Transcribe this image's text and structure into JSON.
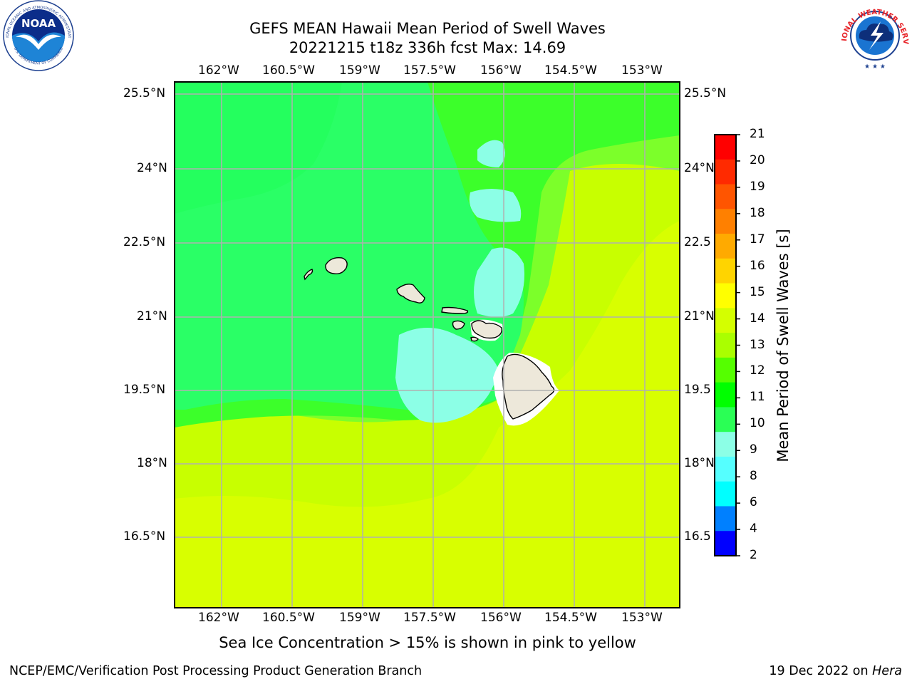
{
  "title": {
    "line1": "GEFS MEAN Hawaii Mean Period of Swell Waves",
    "line2": "20221215 t18z 336h fcst   Max: 14.69"
  },
  "map": {
    "lon_labels": [
      "162°W",
      "160.5°W",
      "159°W",
      "157.5°W",
      "156°W",
      "154.5°W",
      "153°W"
    ],
    "lat_labels_left": [
      "25.5°N",
      "24°N",
      "22.5°N",
      "21°N",
      "19.5°N",
      "18°N",
      "16.5°N"
    ],
    "lat_labels_right": [
      "25.5°N",
      "24°N",
      "22.5",
      "21°N",
      "19.5",
      "18°N",
      "16.5"
    ],
    "ocean_color": "#7cff2a",
    "land_color": "#ede8da"
  },
  "colorbar": {
    "label": "Mean Period of Swell Waves [s]",
    "ticks": [
      "21",
      "20",
      "19",
      "18",
      "17",
      "16",
      "15",
      "14",
      "13",
      "12",
      "11",
      "10",
      "9",
      "8",
      "6",
      "4",
      "2"
    ],
    "colors": [
      "#ff0000",
      "#ff2a00",
      "#ff5500",
      "#ff8000",
      "#ffaa00",
      "#ffd400",
      "#ffff00",
      "#d4ff00",
      "#aaff00",
      "#55ff00",
      "#00ff00",
      "#2aff55",
      "#8cffe6",
      "#55ffff",
      "#00ffff",
      "#0080ff",
      "#0000ff"
    ]
  },
  "caption": "Sea Ice Concentration > 15% is shown in pink to yellow",
  "footer": {
    "left": "NCEP/EMC/Verification Post Processing Product Generation Branch",
    "right_date": "19 Dec 2022 on ",
    "right_host": "Hera"
  },
  "logos": {
    "noaa_text": "NOAA",
    "noaa_ring_top": "NATIONAL OCEANIC AND ATMOSPHERIC ADMINISTRATION",
    "noaa_ring_bottom": "U.S. DEPARTMENT OF COMMERCE",
    "nws_ring": "NATIONAL WEATHER SERVICE"
  }
}
